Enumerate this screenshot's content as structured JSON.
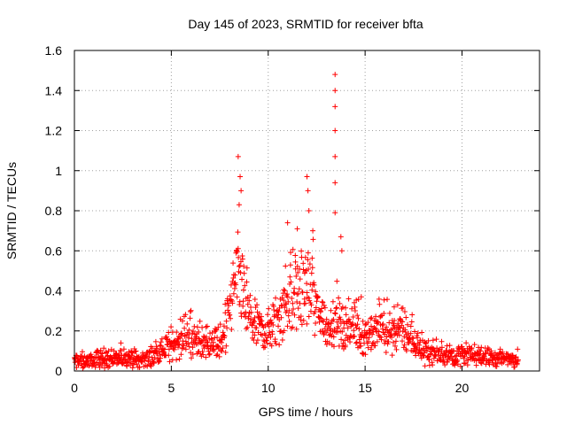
{
  "chart_data": {
    "type": "scatter",
    "title": "Day 145 of 2023, SRMTID for receiver bfta",
    "xlabel": "GPS time / hours",
    "ylabel": "SRMTID / TECUs",
    "xlim": [
      0,
      24
    ],
    "ylim": [
      0,
      1.6
    ],
    "x_ticks": [
      0,
      5,
      10,
      15,
      20
    ],
    "y_ticks": [
      0,
      0.2,
      0.4,
      0.6,
      0.8,
      1,
      1.2,
      1.4,
      1.6
    ],
    "x_tick_labels": [
      "0",
      "5",
      "10",
      "15",
      "20"
    ],
    "y_tick_labels": [
      "0",
      "0.2",
      "0.4",
      "0.6",
      "0.8",
      "1",
      "1.2",
      "1.4",
      "1.6"
    ],
    "grid": true,
    "marker": "+",
    "color": "#ff0000",
    "x_range_of_data": [
      0,
      22.9
    ],
    "series": [
      {
        "name": "SRMTID",
        "profile_x": [
          0,
          1,
          2,
          3,
          3.5,
          4,
          4.5,
          5,
          5.5,
          6,
          6.5,
          7,
          7.5,
          7.8,
          8,
          8.2,
          8.4,
          8.6,
          8.8,
          9,
          9.3,
          9.6,
          10,
          10.5,
          10.8,
          11,
          11.3,
          11.6,
          11.8,
          12,
          12.2,
          12.5,
          12.8,
          13,
          13.3,
          13.5,
          13.7,
          14,
          14.3,
          14.6,
          15,
          15.5,
          16,
          16.5,
          17,
          17.5,
          18,
          19,
          20,
          21,
          22,
          22.9
        ],
        "profile_median": [
          0.05,
          0.055,
          0.06,
          0.06,
          0.05,
          0.07,
          0.1,
          0.13,
          0.15,
          0.16,
          0.15,
          0.14,
          0.13,
          0.18,
          0.3,
          0.4,
          0.45,
          0.42,
          0.35,
          0.28,
          0.22,
          0.2,
          0.2,
          0.25,
          0.32,
          0.36,
          0.4,
          0.38,
          0.4,
          0.38,
          0.4,
          0.3,
          0.25,
          0.22,
          0.22,
          0.25,
          0.22,
          0.2,
          0.2,
          0.2,
          0.18,
          0.18,
          0.2,
          0.2,
          0.2,
          0.14,
          0.1,
          0.08,
          0.08,
          0.07,
          0.06,
          0.06
        ],
        "peaks": [
          {
            "x": 8.45,
            "y": 1.07
          },
          {
            "x": 8.55,
            "y": 0.97
          },
          {
            "x": 8.6,
            "y": 0.9
          },
          {
            "x": 8.5,
            "y": 0.83
          },
          {
            "x": 11.0,
            "y": 0.74
          },
          {
            "x": 11.5,
            "y": 0.71
          },
          {
            "x": 12.0,
            "y": 0.97
          },
          {
            "x": 12.05,
            "y": 0.9
          },
          {
            "x": 12.1,
            "y": 0.8
          },
          {
            "x": 12.3,
            "y": 0.7
          },
          {
            "x": 13.45,
            "y": 1.48
          },
          {
            "x": 13.45,
            "y": 1.4
          },
          {
            "x": 13.45,
            "y": 1.32
          },
          {
            "x": 13.45,
            "y": 1.2
          },
          {
            "x": 13.45,
            "y": 1.07
          },
          {
            "x": 13.45,
            "y": 0.94
          },
          {
            "x": 13.45,
            "y": 0.79
          },
          {
            "x": 13.75,
            "y": 0.67
          },
          {
            "x": 13.8,
            "y": 0.6
          },
          {
            "x": 14.8,
            "y": 0.37
          },
          {
            "x": 16.5,
            "y": 0.32
          },
          {
            "x": 2.4,
            "y": 0.14
          }
        ]
      }
    ]
  }
}
